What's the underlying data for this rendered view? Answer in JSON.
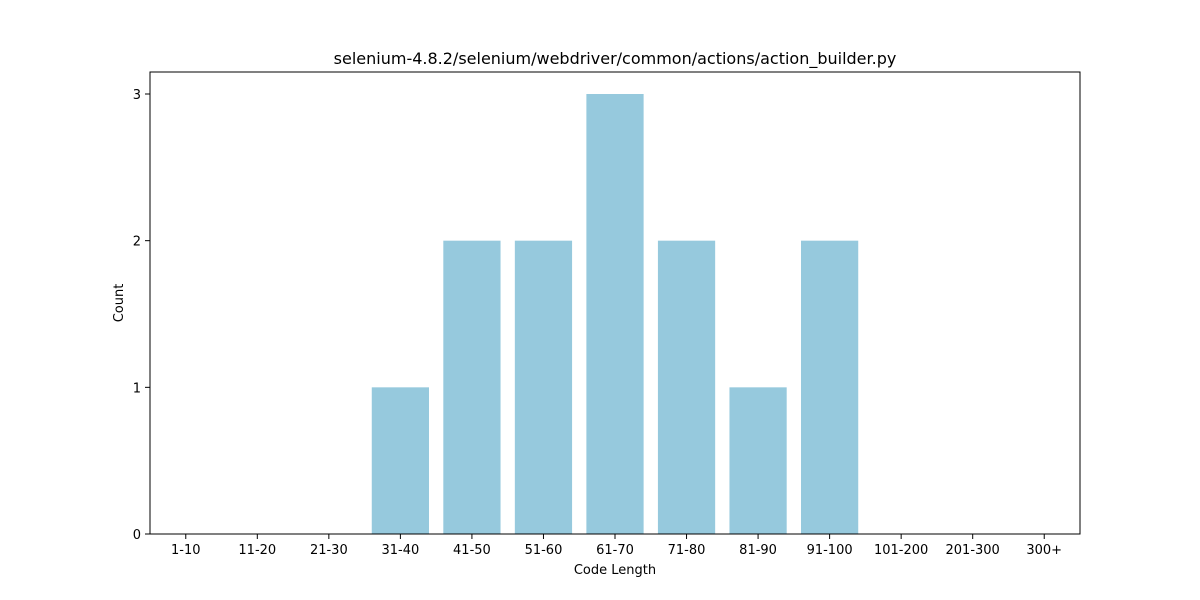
{
  "chart_data": {
    "type": "bar",
    "title": "selenium-4.8.2/selenium/webdriver/common/actions/action_builder.py",
    "xlabel": "Code Length",
    "ylabel": "Count",
    "categories": [
      "1-10",
      "11-20",
      "21-30",
      "31-40",
      "41-50",
      "51-60",
      "61-70",
      "71-80",
      "81-90",
      "91-100",
      "101-200",
      "201-300",
      "300+"
    ],
    "values": [
      0,
      0,
      0,
      1,
      2,
      2,
      3,
      2,
      1,
      2,
      0,
      0,
      0
    ],
    "ylim": [
      0,
      3.15
    ],
    "yticks": [
      0,
      1,
      2,
      3
    ],
    "grid": false,
    "colors": {
      "bar": "#96c9dd",
      "axis": "#000000"
    }
  }
}
